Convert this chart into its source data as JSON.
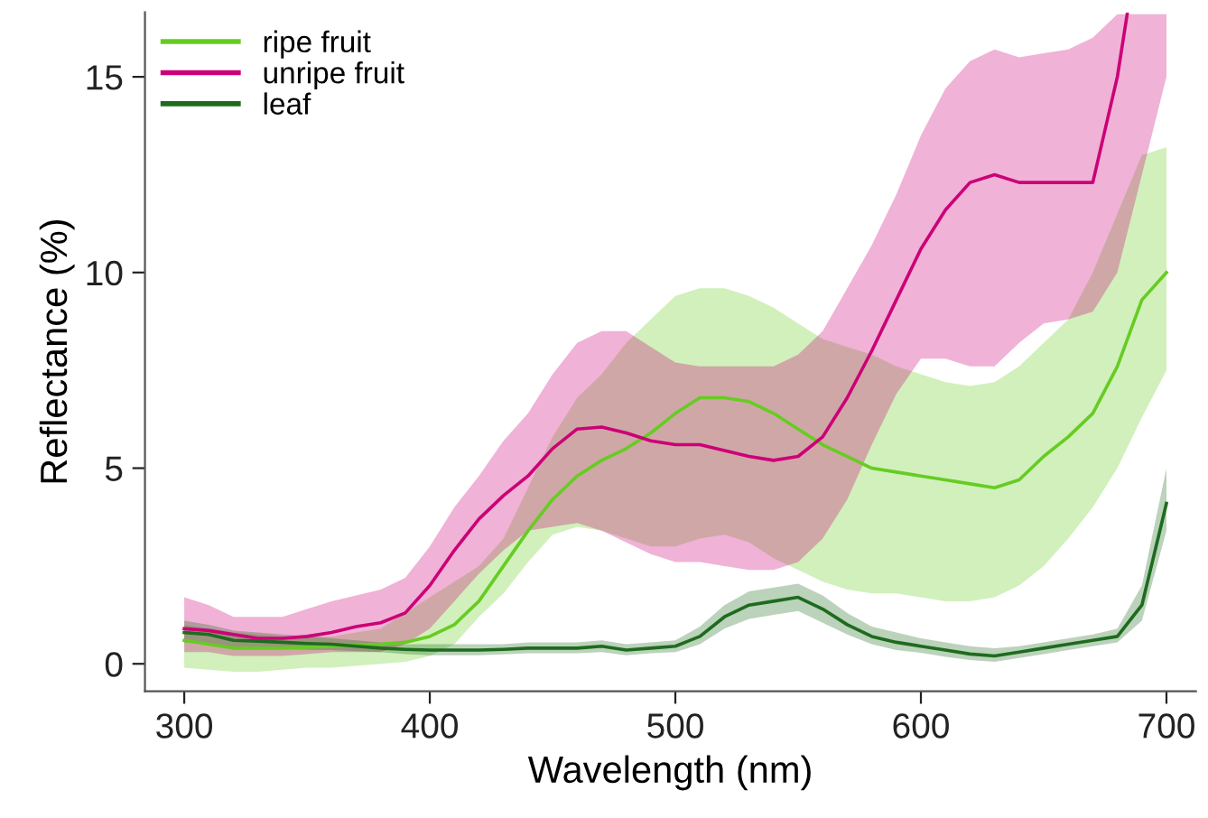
{
  "chart_data": {
    "type": "line",
    "xlabel": "Wavelength (nm)",
    "ylabel": "Reflectance (%)",
    "x": [
      300,
      310,
      320,
      330,
      340,
      350,
      360,
      370,
      380,
      390,
      400,
      410,
      420,
      430,
      440,
      450,
      460,
      470,
      480,
      490,
      500,
      510,
      520,
      530,
      540,
      550,
      560,
      570,
      580,
      590,
      600,
      610,
      620,
      630,
      640,
      650,
      660,
      670,
      680,
      690,
      700
    ],
    "xlim": [
      284,
      712
    ],
    "xticks": [
      300,
      400,
      500,
      600,
      700
    ],
    "ylim": [
      -0.7,
      16.65
    ],
    "yticks": [
      0,
      5,
      10,
      15
    ],
    "grid": false,
    "legend": "top left",
    "marker": "none",
    "line_style": "solid",
    "series": [
      {
        "name": "ripe fruit",
        "color": "#66cc22",
        "values": [
          0.6,
          0.5,
          0.4,
          0.4,
          0.4,
          0.42,
          0.45,
          0.48,
          0.5,
          0.55,
          0.7,
          1.0,
          1.6,
          2.5,
          3.4,
          4.2,
          4.8,
          5.2,
          5.5,
          5.9,
          6.4,
          6.8,
          6.8,
          6.7,
          6.4,
          6.0,
          5.6,
          5.3,
          5.0,
          4.9,
          4.8,
          4.7,
          4.6,
          4.5,
          4.7,
          5.3,
          5.8,
          6.4,
          7.6,
          9.3,
          10.0
        ],
        "upper": [
          1.0,
          0.9,
          0.8,
          0.75,
          0.7,
          0.7,
          0.7,
          0.8,
          0.9,
          1.3,
          1.7,
          2.1,
          2.5,
          3.2,
          4.5,
          5.8,
          6.8,
          7.4,
          8.2,
          8.8,
          9.4,
          9.6,
          9.6,
          9.4,
          9.1,
          8.7,
          8.3,
          8.1,
          7.9,
          7.6,
          7.4,
          7.2,
          7.1,
          7.2,
          7.6,
          8.2,
          8.8,
          10.0,
          11.5,
          13.0,
          13.2
        ],
        "lower": [
          -0.1,
          -0.15,
          -0.2,
          -0.2,
          -0.15,
          -0.1,
          -0.1,
          -0.05,
          0,
          0.05,
          0.2,
          0.5,
          1.2,
          1.8,
          2.6,
          3.3,
          3.5,
          3.4,
          3.2,
          3.0,
          3.0,
          3.2,
          3.3,
          3.1,
          2.7,
          2.4,
          2.1,
          1.9,
          1.8,
          1.8,
          1.7,
          1.6,
          1.6,
          1.7,
          2.0,
          2.5,
          3.2,
          4.0,
          5.0,
          6.3,
          7.5
        ]
      },
      {
        "name": "unripe fruit",
        "color": "#cc0077",
        "x": [
          300,
          310,
          320,
          330,
          340,
          350,
          360,
          370,
          380,
          390,
          400,
          410,
          420,
          430,
          440,
          450,
          460,
          470,
          480,
          490,
          500,
          510,
          520,
          530,
          540,
          550,
          560,
          570,
          580,
          590,
          600,
          610,
          620,
          630,
          640,
          650,
          660,
          670,
          680,
          684,
          690,
          700
        ],
        "values": [
          0.9,
          0.85,
          0.75,
          0.65,
          0.65,
          0.7,
          0.8,
          0.95,
          1.05,
          1.3,
          2.0,
          2.9,
          3.7,
          4.3,
          4.8,
          5.5,
          6.0,
          6.05,
          5.9,
          5.7,
          5.6,
          5.6,
          5.45,
          5.3,
          5.2,
          5.3,
          5.8,
          6.8,
          8.0,
          9.3,
          10.6,
          11.6,
          12.3,
          12.5,
          12.3,
          12.3,
          12.3,
          12.3,
          15.0,
          16.6,
          null,
          null
        ],
        "upper": [
          1.7,
          1.5,
          1.2,
          1.2,
          1.2,
          1.4,
          1.6,
          1.75,
          1.9,
          2.2,
          3.0,
          4.0,
          4.8,
          5.7,
          6.4,
          7.4,
          8.2,
          8.5,
          8.5,
          8.1,
          7.7,
          7.6,
          7.6,
          7.6,
          7.6,
          7.9,
          8.5,
          9.6,
          10.7,
          12.0,
          13.5,
          14.7,
          15.4,
          15.7,
          15.5,
          15.6,
          15.7,
          16.0,
          16.6,
          16.6,
          16.6,
          16.6
        ],
        "lower": [
          0.3,
          0.3,
          0.2,
          0.2,
          0.2,
          0.25,
          0.3,
          0.3,
          0.3,
          0.5,
          0.9,
          1.6,
          2.3,
          2.9,
          3.4,
          3.5,
          3.6,
          3.4,
          3.1,
          2.8,
          2.6,
          2.6,
          2.5,
          2.4,
          2.4,
          2.6,
          3.2,
          4.2,
          5.6,
          6.9,
          7.8,
          7.8,
          7.6,
          7.6,
          8.2,
          8.7,
          8.8,
          9.0,
          10.0,
          11.0,
          12.5,
          15.0
        ]
      },
      {
        "name": "leaf",
        "color": "#1e6b1e",
        "values": [
          0.8,
          0.75,
          0.6,
          0.58,
          0.55,
          0.52,
          0.5,
          0.45,
          0.4,
          0.37,
          0.35,
          0.35,
          0.35,
          0.37,
          0.4,
          0.4,
          0.4,
          0.45,
          0.35,
          0.4,
          0.45,
          0.7,
          1.2,
          1.5,
          1.6,
          1.7,
          1.4,
          1.0,
          0.7,
          0.55,
          0.45,
          0.35,
          0.25,
          0.2,
          0.3,
          0.4,
          0.5,
          0.6,
          0.7,
          1.5,
          4.1
        ],
        "upper": [
          1.1,
          1.0,
          0.85,
          0.8,
          0.75,
          0.7,
          0.65,
          0.6,
          0.55,
          0.5,
          0.5,
          0.5,
          0.5,
          0.5,
          0.55,
          0.55,
          0.55,
          0.6,
          0.5,
          0.55,
          0.6,
          0.95,
          1.5,
          1.85,
          1.95,
          2.05,
          1.75,
          1.3,
          0.95,
          0.8,
          0.65,
          0.55,
          0.45,
          0.4,
          0.45,
          0.55,
          0.65,
          0.75,
          0.9,
          2.0,
          5.0
        ],
        "lower": [
          0.55,
          0.5,
          0.4,
          0.4,
          0.38,
          0.36,
          0.35,
          0.32,
          0.3,
          0.25,
          0.22,
          0.22,
          0.22,
          0.24,
          0.27,
          0.27,
          0.27,
          0.3,
          0.22,
          0.27,
          0.3,
          0.5,
          0.9,
          1.15,
          1.25,
          1.35,
          1.05,
          0.75,
          0.5,
          0.35,
          0.28,
          0.18,
          0.1,
          0.05,
          0.15,
          0.25,
          0.35,
          0.45,
          0.55,
          1.1,
          3.4
        ]
      }
    ]
  }
}
